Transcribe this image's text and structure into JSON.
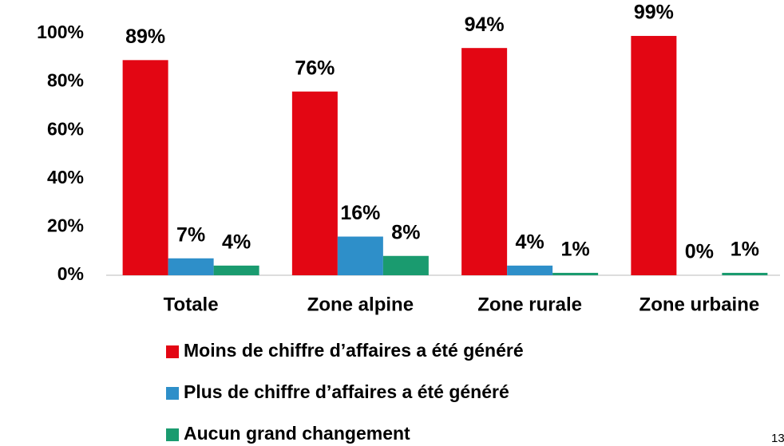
{
  "chart_data": {
    "type": "bar",
    "categories": [
      "Totale",
      "Zone alpine",
      "Zone rurale",
      "Zone urbaine"
    ],
    "series": [
      {
        "name": "Moins de chiffre d’affaires a été généré",
        "color": "#e30613",
        "values": [
          89,
          76,
          94,
          99
        ],
        "value_labels": [
          "89%",
          "76%",
          "94%",
          "99%"
        ]
      },
      {
        "name": "Plus de chiffre d’affaires a été généré",
        "color": "#2e8fc9",
        "values": [
          7,
          16,
          4,
          0
        ],
        "value_labels": [
          "7%",
          "16%",
          "4%",
          "0%"
        ]
      },
      {
        "name": "Aucun grand changement",
        "color": "#1a9b6f",
        "values": [
          4,
          8,
          1,
          1
        ],
        "value_labels": [
          "4%",
          "8%",
          "1%",
          "1%"
        ]
      }
    ],
    "ylim": [
      0,
      100
    ],
    "yticks": [
      {
        "value": 0,
        "label": "0%"
      },
      {
        "value": 20,
        "label": "20%"
      },
      {
        "value": 40,
        "label": "40%"
      },
      {
        "value": 60,
        "label": "60%"
      },
      {
        "value": 80,
        "label": "80%"
      },
      {
        "value": 100,
        "label": "100%"
      }
    ],
    "grid": false,
    "legend": "bottom",
    "page_number": "13"
  }
}
